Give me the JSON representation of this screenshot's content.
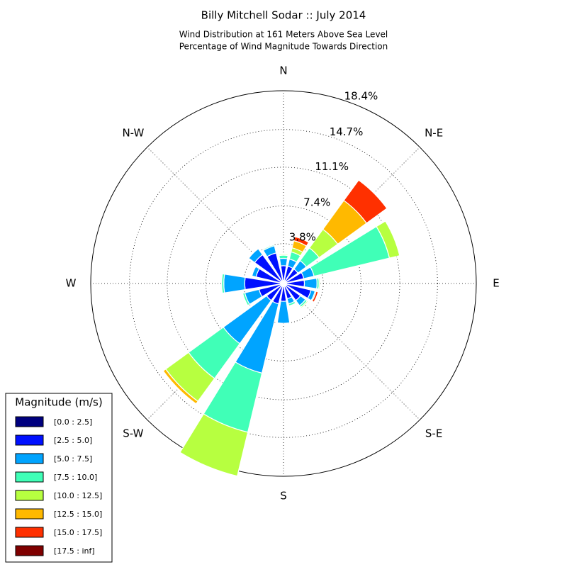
{
  "chart_data": {
    "type": "windrose",
    "title": "Billy Mitchell Sodar :: July 2014",
    "subtitle": [
      "Wind Distribution at 161 Meters Above Sea Level",
      "Percentage of Wind Magnitude Towards Direction"
    ],
    "categories": [
      "N",
      null,
      "N-E",
      null,
      "E",
      null,
      "S-E",
      null,
      "S",
      null,
      "S-W",
      null,
      "W",
      null,
      "N-W",
      null
    ],
    "ylim": [
      0,
      18.4
    ],
    "yticks": [
      {
        "value": 3.8,
        "label": "3.8%"
      },
      {
        "value": 7.4,
        "label": "7.4%"
      },
      {
        "value": 11.1,
        "label": "11.1%"
      },
      {
        "value": 14.7,
        "label": "14.7%"
      },
      {
        "value": 18.4,
        "label": "18.4%"
      }
    ],
    "grid": true,
    "legend_title": "Magnitude (m/s)",
    "legend_position": "lower left",
    "series": [
      {
        "name": "[0.0 : 2.5]",
        "color": "#00007f",
        "values": [
          0.3,
          0.3,
          0.3,
          0.3,
          0.3,
          0.3,
          0.3,
          0.3,
          0.3,
          0.3,
          0.3,
          0.3,
          0.3,
          0.3,
          0.3,
          0.3
        ]
      },
      {
        "name": "[2.5 : 5.0]",
        "color": "#0010ff",
        "values": [
          1.4,
          1.4,
          1.4,
          1.7,
          1.7,
          2.4,
          1.7,
          1.2,
          1.4,
          1.7,
          1.7,
          2.1,
          3.4,
          2.4,
          3.1,
          2.7
        ]
      },
      {
        "name": "[5.0 : 7.5]",
        "color": "#00a4ff",
        "values": [
          0.7,
          0.7,
          1.0,
          1.0,
          1.2,
          0.4,
          0.6,
          0.5,
          2.1,
          6.8,
          5.1,
          1.4,
          2.0,
          0.4,
          0.7,
          0.7
        ]
      },
      {
        "name": "[7.5 : 10.0]",
        "color": "#40ffb7",
        "values": [
          0.3,
          0.7,
          1.5,
          7.4,
          0.2,
          0.1,
          0.2,
          0.2,
          0,
          5.8,
          4.1,
          0.2,
          0.2,
          0,
          0,
          0.1
        ]
      },
      {
        "name": "[10.0 : 12.5]",
        "color": "#b7ff40",
        "values": [
          0.1,
          0.4,
          2.2,
          1.0,
          0.1,
          0,
          0.1,
          0,
          0,
          4.3,
          2.7,
          0,
          0,
          0,
          0,
          0
        ]
      },
      {
        "name": "[12.5 : 15.0]",
        "color": "#ffb900",
        "values": [
          0,
          0.7,
          3.4,
          0,
          0,
          0,
          0,
          0,
          0,
          0,
          0.3,
          0,
          0,
          0,
          0,
          0
        ]
      },
      {
        "name": "[15.0 : 17.5]",
        "color": "#ff3000",
        "values": [
          0,
          0.4,
          2.4,
          0,
          0,
          0.2,
          0,
          0,
          0,
          0,
          0,
          0,
          0,
          0,
          0,
          0
        ]
      },
      {
        "name": "[17.5 : inf]",
        "color": "#7f0000",
        "values": [
          0,
          0,
          0,
          0,
          0,
          0,
          0,
          0,
          0,
          0,
          0,
          0,
          0,
          0,
          0,
          0
        ]
      }
    ]
  }
}
